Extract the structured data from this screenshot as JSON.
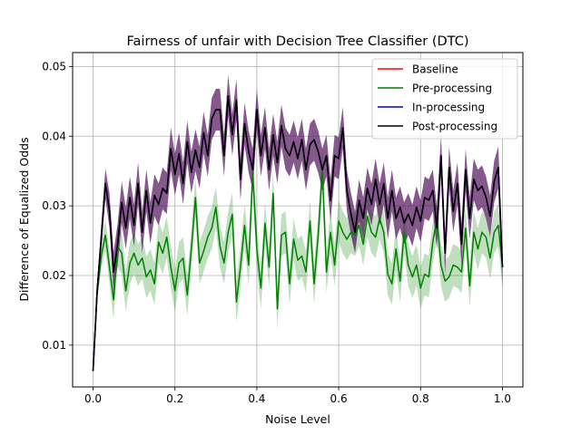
{
  "chart_data": {
    "type": "line",
    "title": "Fairness of unfair with Decision Tree Classifier (DTC)",
    "xlabel": "Noise Level",
    "ylabel": "Difference of Equalized Odds",
    "xlim": [
      -0.05,
      1.05
    ],
    "ylim": [
      0.004,
      0.052
    ],
    "xticks": [
      0.0,
      0.2,
      0.4,
      0.6,
      0.8,
      1.0
    ],
    "xtick_labels": [
      "0.0",
      "0.2",
      "0.4",
      "0.6",
      "0.8",
      "1.0"
    ],
    "yticks": [
      0.01,
      0.02,
      0.03,
      0.04,
      0.05
    ],
    "ytick_labels": [
      "0.01",
      "0.02",
      "0.03",
      "0.04",
      "0.05"
    ],
    "grid": true,
    "legend_position": "top-right",
    "x": [
      0.0,
      0.01,
      0.02,
      0.03,
      0.04,
      0.05,
      0.06,
      0.07,
      0.08,
      0.09,
      0.1,
      0.11,
      0.12,
      0.13,
      0.14,
      0.15,
      0.16,
      0.17,
      0.18,
      0.19,
      0.2,
      0.21,
      0.22,
      0.23,
      0.24,
      0.25,
      0.26,
      0.27,
      0.28,
      0.29,
      0.3,
      0.31,
      0.32,
      0.33,
      0.34,
      0.35,
      0.36,
      0.37,
      0.38,
      0.39,
      0.4,
      0.41,
      0.42,
      0.43,
      0.44,
      0.45,
      0.46,
      0.47,
      0.48,
      0.49,
      0.5,
      0.51,
      0.52,
      0.53,
      0.54,
      0.55,
      0.56,
      0.57,
      0.58,
      0.59,
      0.6,
      0.61,
      0.62,
      0.63,
      0.64,
      0.65,
      0.66,
      0.67,
      0.68,
      0.69,
      0.7,
      0.71,
      0.72,
      0.73,
      0.74,
      0.75,
      0.76,
      0.77,
      0.78,
      0.79,
      0.8,
      0.81,
      0.82,
      0.83,
      0.84,
      0.85,
      0.86,
      0.87,
      0.88,
      0.89,
      0.9,
      0.91,
      0.92,
      0.93,
      0.94,
      0.95,
      0.96,
      0.97,
      0.98,
      0.99,
      1.0
    ],
    "series": [
      {
        "name": "Baseline",
        "color": "#ff0000",
        "values": [
          0.0063,
          0.018,
          0.0255,
          0.0332,
          0.0293,
          0.0205,
          0.0245,
          0.0305,
          0.0268,
          0.0312,
          0.0272,
          0.0332,
          0.0262,
          0.0322,
          0.0275,
          0.0315,
          0.0302,
          0.0325,
          0.0318,
          0.0382,
          0.0345,
          0.0375,
          0.0332,
          0.0392,
          0.0348,
          0.038,
          0.0355,
          0.0405,
          0.0372,
          0.0425,
          0.0438,
          0.0438,
          0.0372,
          0.0458,
          0.0402,
          0.0452,
          0.0338,
          0.0418,
          0.0378,
          0.0352,
          0.0438,
          0.0372,
          0.0412,
          0.0352,
          0.0402,
          0.0362,
          0.0415,
          0.0382,
          0.0372,
          0.0392,
          0.0368,
          0.0395,
          0.0352,
          0.0388,
          0.0395,
          0.0378,
          0.0352,
          0.0372,
          0.0308,
          0.0372,
          0.0368,
          0.0412,
          0.0322,
          0.0288,
          0.0262,
          0.0308,
          0.0282,
          0.0325,
          0.0302,
          0.0338,
          0.0302,
          0.0332,
          0.0282,
          0.0322,
          0.0282,
          0.0298,
          0.0275,
          0.0288,
          0.0272,
          0.0298,
          0.0278,
          0.0312,
          0.0308,
          0.0322,
          0.0268,
          0.0372,
          0.0232,
          0.0355,
          0.0292,
          0.0332,
          0.0245,
          0.0352,
          0.0282,
          0.0338,
          0.0322,
          0.0328,
          0.0312,
          0.0285,
          0.0335,
          0.0355,
          0.0212
        ]
      },
      {
        "name": "Pre-processing",
        "color": "#008000",
        "values": [
          0.0063,
          0.0175,
          0.0228,
          0.0258,
          0.0212,
          0.0165,
          0.0242,
          0.0232,
          0.0178,
          0.0218,
          0.0232,
          0.0215,
          0.0225,
          0.0198,
          0.0208,
          0.0188,
          0.0248,
          0.0232,
          0.0255,
          0.0212,
          0.0178,
          0.0218,
          0.0225,
          0.0172,
          0.0238,
          0.0312,
          0.0218,
          0.0235,
          0.0255,
          0.0268,
          0.0298,
          0.0242,
          0.0218,
          0.0262,
          0.0288,
          0.0162,
          0.0212,
          0.0272,
          0.0215,
          0.0348,
          0.0238,
          0.0182,
          0.0275,
          0.0212,
          0.0318,
          0.0152,
          0.0258,
          0.0262,
          0.0188,
          0.0252,
          0.0222,
          0.0228,
          0.0205,
          0.0278,
          0.0188,
          0.0258,
          0.0352,
          0.0205,
          0.0262,
          0.0215,
          0.0278,
          0.0262,
          0.0252,
          0.0262,
          0.0258,
          0.0272,
          0.0245,
          0.0285,
          0.0262,
          0.0255,
          0.0282,
          0.0262,
          0.0202,
          0.0188,
          0.0238,
          0.0192,
          0.0262,
          0.0215,
          0.0198,
          0.0215,
          0.0182,
          0.0202,
          0.0198,
          0.0248,
          0.0282,
          0.0215,
          0.0192,
          0.0198,
          0.0215,
          0.0212,
          0.0205,
          0.0268,
          0.0185,
          0.0262,
          0.0238,
          0.0262,
          0.0255,
          0.0225,
          0.0262,
          0.0272,
          0.0212
        ]
      },
      {
        "name": "In-processing",
        "color": "#0000cc",
        "values": [
          0.0063,
          0.018,
          0.0255,
          0.0332,
          0.0293,
          0.0205,
          0.0245,
          0.0305,
          0.0268,
          0.0312,
          0.0272,
          0.0332,
          0.0262,
          0.0322,
          0.0275,
          0.0315,
          0.0302,
          0.0325,
          0.0318,
          0.0382,
          0.0345,
          0.0375,
          0.0332,
          0.0392,
          0.0348,
          0.038,
          0.0355,
          0.0405,
          0.0372,
          0.0425,
          0.0438,
          0.0438,
          0.0372,
          0.0458,
          0.0402,
          0.0452,
          0.0338,
          0.0418,
          0.0378,
          0.0352,
          0.0438,
          0.0372,
          0.0412,
          0.0352,
          0.0402,
          0.0362,
          0.0415,
          0.0382,
          0.0372,
          0.0392,
          0.0368,
          0.0395,
          0.0352,
          0.0388,
          0.0395,
          0.0378,
          0.0352,
          0.0372,
          0.0308,
          0.0372,
          0.0368,
          0.0412,
          0.0322,
          0.0288,
          0.0262,
          0.0308,
          0.0282,
          0.0325,
          0.0302,
          0.0338,
          0.0302,
          0.0332,
          0.0282,
          0.0322,
          0.0282,
          0.0298,
          0.0275,
          0.0288,
          0.0272,
          0.0298,
          0.0278,
          0.0312,
          0.0308,
          0.0322,
          0.0268,
          0.0372,
          0.0232,
          0.0355,
          0.0292,
          0.0332,
          0.0245,
          0.0352,
          0.0282,
          0.0338,
          0.0322,
          0.0328,
          0.0312,
          0.0285,
          0.0335,
          0.0355,
          0.0212
        ]
      },
      {
        "name": "Post-processing",
        "color": "#000000",
        "values": [
          0.0063,
          0.018,
          0.0255,
          0.0332,
          0.0293,
          0.0205,
          0.0245,
          0.0305,
          0.0268,
          0.0312,
          0.0272,
          0.0332,
          0.0262,
          0.0322,
          0.0275,
          0.0315,
          0.0302,
          0.0325,
          0.0318,
          0.0382,
          0.0345,
          0.0375,
          0.0332,
          0.0392,
          0.0348,
          0.038,
          0.0355,
          0.0405,
          0.0372,
          0.0425,
          0.0438,
          0.0438,
          0.0372,
          0.0458,
          0.0402,
          0.0452,
          0.0338,
          0.0418,
          0.0378,
          0.0352,
          0.0438,
          0.0372,
          0.0412,
          0.0352,
          0.0402,
          0.0362,
          0.0415,
          0.0382,
          0.0372,
          0.0392,
          0.0368,
          0.0395,
          0.0352,
          0.0388,
          0.0395,
          0.0378,
          0.0352,
          0.0372,
          0.0308,
          0.0372,
          0.0368,
          0.0412,
          0.0322,
          0.0288,
          0.0262,
          0.0308,
          0.0282,
          0.0325,
          0.0302,
          0.0338,
          0.0302,
          0.0332,
          0.0282,
          0.0322,
          0.0282,
          0.0298,
          0.0275,
          0.0288,
          0.0272,
          0.0298,
          0.0278,
          0.0312,
          0.0308,
          0.0322,
          0.0268,
          0.0372,
          0.0232,
          0.0355,
          0.0292,
          0.0332,
          0.0245,
          0.0352,
          0.0282,
          0.0338,
          0.0322,
          0.0328,
          0.0312,
          0.0285,
          0.0335,
          0.0355,
          0.0212
        ]
      }
    ],
    "bands": [
      {
        "series": "Pre-processing",
        "fill": "#008000",
        "opacity": 0.25,
        "half_width": [
          0.0003,
          0.0012,
          0.0018,
          0.0022,
          0.0025,
          0.0028,
          0.003,
          0.003,
          0.003,
          0.003,
          0.003,
          0.003,
          0.003,
          0.003,
          0.003,
          0.003,
          0.003,
          0.003,
          0.003,
          0.003,
          0.003,
          0.003,
          0.003,
          0.003,
          0.003,
          0.003,
          0.003,
          0.003,
          0.003,
          0.003,
          0.003,
          0.003,
          0.003,
          0.003,
          0.003,
          0.003,
          0.003,
          0.003,
          0.003,
          0.003,
          0.003,
          0.003,
          0.003,
          0.003,
          0.003,
          0.003,
          0.003,
          0.003,
          0.003,
          0.003,
          0.003,
          0.003,
          0.003,
          0.003,
          0.003,
          0.003,
          0.003,
          0.003,
          0.003,
          0.003,
          0.003,
          0.003,
          0.003,
          0.003,
          0.003,
          0.003,
          0.003,
          0.003,
          0.003,
          0.003,
          0.003,
          0.003,
          0.003,
          0.003,
          0.003,
          0.003,
          0.003,
          0.003,
          0.003,
          0.003,
          0.003,
          0.003,
          0.003,
          0.003,
          0.003,
          0.003,
          0.003,
          0.003,
          0.003,
          0.003,
          0.003,
          0.003,
          0.003,
          0.003,
          0.003,
          0.003,
          0.003,
          0.003,
          0.003,
          0.003,
          0.003
        ]
      },
      {
        "series": "Post-processing",
        "fill": "#4b0a56",
        "opacity": 0.68,
        "half_width": [
          0.0003,
          0.0012,
          0.0018,
          0.0022,
          0.0025,
          0.0028,
          0.003,
          0.003,
          0.003,
          0.003,
          0.003,
          0.003,
          0.003,
          0.003,
          0.003,
          0.003,
          0.003,
          0.003,
          0.003,
          0.003,
          0.003,
          0.003,
          0.003,
          0.003,
          0.003,
          0.003,
          0.003,
          0.003,
          0.003,
          0.003,
          0.003,
          0.003,
          0.003,
          0.003,
          0.003,
          0.003,
          0.003,
          0.003,
          0.003,
          0.003,
          0.003,
          0.003,
          0.003,
          0.003,
          0.003,
          0.003,
          0.003,
          0.003,
          0.003,
          0.003,
          0.003,
          0.003,
          0.003,
          0.003,
          0.003,
          0.003,
          0.003,
          0.003,
          0.003,
          0.003,
          0.003,
          0.003,
          0.003,
          0.003,
          0.003,
          0.003,
          0.003,
          0.003,
          0.003,
          0.003,
          0.003,
          0.003,
          0.003,
          0.003,
          0.003,
          0.003,
          0.003,
          0.003,
          0.003,
          0.003,
          0.003,
          0.003,
          0.003,
          0.003,
          0.003,
          0.003,
          0.003,
          0.003,
          0.003,
          0.003,
          0.003,
          0.003,
          0.003,
          0.003,
          0.003,
          0.003,
          0.003,
          0.003,
          0.003,
          0.003,
          0.003
        ]
      }
    ]
  }
}
